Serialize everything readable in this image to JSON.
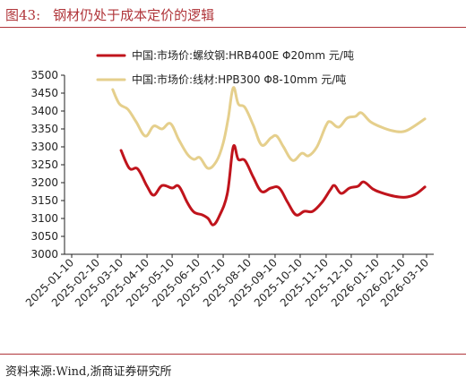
{
  "figure": {
    "number": "图43:",
    "title": "钢材仍处于成本定价的逻辑",
    "source": "资料来源:Wind,浙商证券研究所"
  },
  "colors": {
    "series1": "#c0141c",
    "series2": "#e5cf8c",
    "axis": "#222222",
    "title": "#b0353a"
  },
  "chart_data": {
    "type": "line",
    "title": "",
    "xlabel": "",
    "ylabel": "",
    "ylim": [
      3000,
      3500
    ],
    "yticks": [
      3000,
      3050,
      3100,
      3150,
      3200,
      3250,
      3300,
      3350,
      3400,
      3450,
      3500
    ],
    "xticks": [
      "2025-01-10",
      "2025-02-10",
      "2025-03-10",
      "2025-04-10",
      "2025-05-10",
      "2025-06-10",
      "2025-07-10",
      "2025-08-10",
      "2025-09-10",
      "2025-10-10",
      "2025-11-10",
      "2025-12-10",
      "2026-01-10",
      "2026-02-10",
      "2026-03-10"
    ],
    "grid": false,
    "legend": "top",
    "series": [
      {
        "name": "中国:市场价:螺纹钢:HRB400E Φ20mm 元/吨",
        "color": "#c0141c",
        "points": [
          [
            "2025-03-10",
            3290
          ],
          [
            "2025-03-20",
            3240
          ],
          [
            "2025-03-30",
            3238
          ],
          [
            "2025-04-10",
            3190
          ],
          [
            "2025-04-18",
            3165
          ],
          [
            "2025-04-28",
            3192
          ],
          [
            "2025-05-10",
            3185
          ],
          [
            "2025-05-18",
            3190
          ],
          [
            "2025-05-28",
            3145
          ],
          [
            "2025-06-05",
            3118
          ],
          [
            "2025-06-15",
            3110
          ],
          [
            "2025-06-22",
            3100
          ],
          [
            "2025-06-28",
            3082
          ],
          [
            "2025-07-05",
            3105
          ],
          [
            "2025-07-15",
            3170
          ],
          [
            "2025-07-22",
            3300
          ],
          [
            "2025-07-28",
            3265
          ],
          [
            "2025-08-05",
            3262
          ],
          [
            "2025-08-15",
            3215
          ],
          [
            "2025-08-25",
            3175
          ],
          [
            "2025-09-05",
            3185
          ],
          [
            "2025-09-15",
            3185
          ],
          [
            "2025-09-25",
            3145
          ],
          [
            "2025-10-05",
            3110
          ],
          [
            "2025-10-15",
            3120
          ],
          [
            "2025-10-25",
            3120
          ],
          [
            "2025-11-05",
            3145
          ],
          [
            "2025-11-15",
            3180
          ],
          [
            "2025-11-20",
            3192
          ],
          [
            "2025-11-28",
            3170
          ],
          [
            "2025-12-08",
            3185
          ],
          [
            "2025-12-18",
            3190
          ],
          [
            "2025-12-25",
            3202
          ],
          [
            "2026-01-05",
            3182
          ],
          [
            "2026-01-15",
            3172
          ],
          [
            "2026-01-25",
            3165
          ],
          [
            "2026-02-05",
            3160
          ],
          [
            "2026-02-15",
            3160
          ],
          [
            "2026-02-25",
            3168
          ],
          [
            "2026-03-08",
            3188
          ]
        ]
      },
      {
        "name": "中国:市场价:线材:HPB300 Φ8-10mm 元/吨",
        "color": "#e5cf8c",
        "points": [
          [
            "2025-02-28",
            3460
          ],
          [
            "2025-03-08",
            3420
          ],
          [
            "2025-03-18",
            3405
          ],
          [
            "2025-03-28",
            3370
          ],
          [
            "2025-04-08",
            3330
          ],
          [
            "2025-04-18",
            3358
          ],
          [
            "2025-04-28",
            3350
          ],
          [
            "2025-05-08",
            3365
          ],
          [
            "2025-05-18",
            3320
          ],
          [
            "2025-05-28",
            3280
          ],
          [
            "2025-06-05",
            3265
          ],
          [
            "2025-06-12",
            3270
          ],
          [
            "2025-06-22",
            3240
          ],
          [
            "2025-07-02",
            3260
          ],
          [
            "2025-07-10",
            3310
          ],
          [
            "2025-07-16",
            3380
          ],
          [
            "2025-07-22",
            3465
          ],
          [
            "2025-07-28",
            3420
          ],
          [
            "2025-08-05",
            3410
          ],
          [
            "2025-08-15",
            3360
          ],
          [
            "2025-08-25",
            3305
          ],
          [
            "2025-09-05",
            3325
          ],
          [
            "2025-09-12",
            3330
          ],
          [
            "2025-09-20",
            3300
          ],
          [
            "2025-10-01",
            3262
          ],
          [
            "2025-10-12",
            3282
          ],
          [
            "2025-10-20",
            3275
          ],
          [
            "2025-10-30",
            3300
          ],
          [
            "2025-11-10",
            3360
          ],
          [
            "2025-11-15",
            3370
          ],
          [
            "2025-11-25",
            3355
          ],
          [
            "2025-12-05",
            3380
          ],
          [
            "2025-12-15",
            3385
          ],
          [
            "2025-12-22",
            3395
          ],
          [
            "2026-01-02",
            3370
          ],
          [
            "2026-01-15",
            3355
          ],
          [
            "2026-01-28",
            3345
          ],
          [
            "2026-02-08",
            3342
          ],
          [
            "2026-02-18",
            3350
          ],
          [
            "2026-03-08",
            3378
          ]
        ]
      }
    ]
  }
}
